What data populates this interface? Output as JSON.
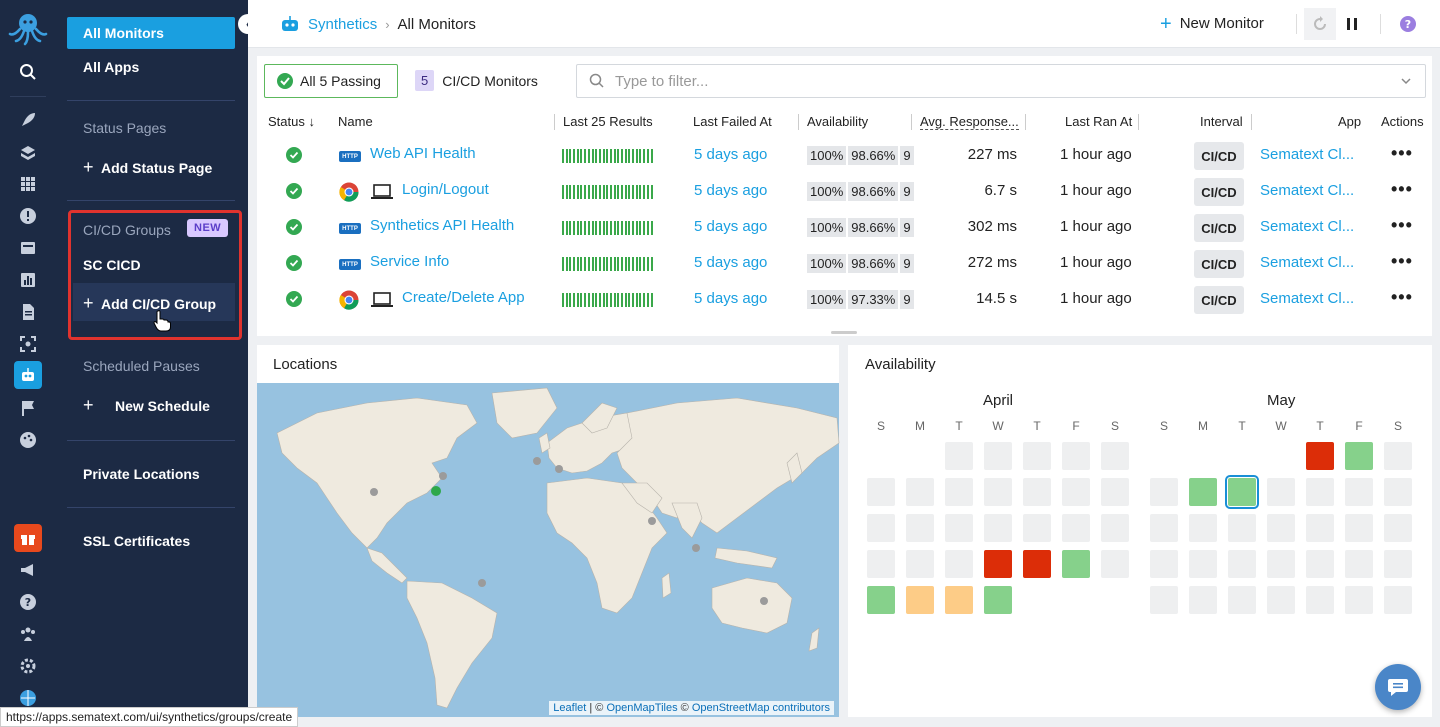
{
  "colors": {
    "accent": "#1a9fe0",
    "nav_bg": "#1c2a44",
    "ok": "#33a852",
    "fail": "#dc2d08",
    "warn": "#fdcc87",
    "highlight": "#e0332e"
  },
  "nav": {
    "all_monitors": "All Monitors",
    "all_apps": "All Apps",
    "status_pages": "Status Pages",
    "add_status_page": "Add Status Page",
    "cicd_groups": "CI/CD Groups",
    "new_badge": "NEW",
    "sc_cicd": "SC CICD",
    "add_cicd_group": "Add CI/CD Group",
    "scheduled_pauses": "Scheduled Pauses",
    "new_schedule": "New Schedule",
    "private_locations": "Private Locations",
    "ssl_certificates": "SSL Certificates"
  },
  "breadcrumb": {
    "root": "Synthetics",
    "current": "All Monitors"
  },
  "toolbar": {
    "new_monitor": "New Monitor"
  },
  "filters": {
    "passing": "All 5 Passing",
    "cicd_count": "5",
    "cicd_label": "CI/CD Monitors",
    "placeholder": "Type to filter..."
  },
  "columns": {
    "status": "Status ↓",
    "name": "Name",
    "last25": "Last 25 Results",
    "last_failed": "Last Failed At",
    "availability": "Availability",
    "avg_response": "Avg. Response...",
    "last_ran": "Last Ran At",
    "interval": "Interval",
    "app": "App",
    "actions": "Actions"
  },
  "monitors": [
    {
      "type": "HTTP",
      "name": "Web API Health",
      "last_failed": "5 days ago",
      "avail": [
        "100%",
        "98.66%",
        "9"
      ],
      "response": "227 ms",
      "last_ran": "1 hour ago",
      "interval": "CI/CD",
      "app": "Sematext Cl..."
    },
    {
      "type": "Browser",
      "name": "Login/Logout",
      "last_failed": "5 days ago",
      "avail": [
        "100%",
        "98.66%",
        "9"
      ],
      "response": "6.7 s",
      "last_ran": "1 hour ago",
      "interval": "CI/CD",
      "app": "Sematext Cl..."
    },
    {
      "type": "HTTP",
      "name": "Synthetics API Health",
      "last_failed": "5 days ago",
      "avail": [
        "100%",
        "98.66%",
        "9"
      ],
      "response": "302 ms",
      "last_ran": "1 hour ago",
      "interval": "CI/CD",
      "app": "Sematext Cl..."
    },
    {
      "type": "HTTP",
      "name": "Service Info",
      "last_failed": "5 days ago",
      "avail": [
        "100%",
        "98.66%",
        "9"
      ],
      "response": "272 ms",
      "last_ran": "1 hour ago",
      "interval": "CI/CD",
      "app": "Sematext Cl..."
    },
    {
      "type": "Browser",
      "name": "Create/Delete App",
      "last_failed": "5 days ago",
      "avail": [
        "100%",
        "97.33%",
        "9"
      ],
      "response": "14.5 s",
      "last_ran": "1 hour ago",
      "interval": "CI/CD",
      "app": "Sematext Cl..."
    }
  ],
  "http_badge": "HTTP",
  "locations": {
    "title": "Locations",
    "attribution_leaflet": "Leaflet",
    "attribution_mid": " | © ",
    "attribution_omt": "OpenMapTiles",
    "attribution_c": " © ",
    "attribution_osm": "OpenStreetMap contributors"
  },
  "availability": {
    "title": "Availability",
    "april": "April",
    "may": "May",
    "weekdays": [
      "S",
      "M",
      "T",
      "W",
      "T",
      "F",
      "S"
    ]
  },
  "status_url": "https://apps.sematext.com/ui/synthetics/groups/create"
}
